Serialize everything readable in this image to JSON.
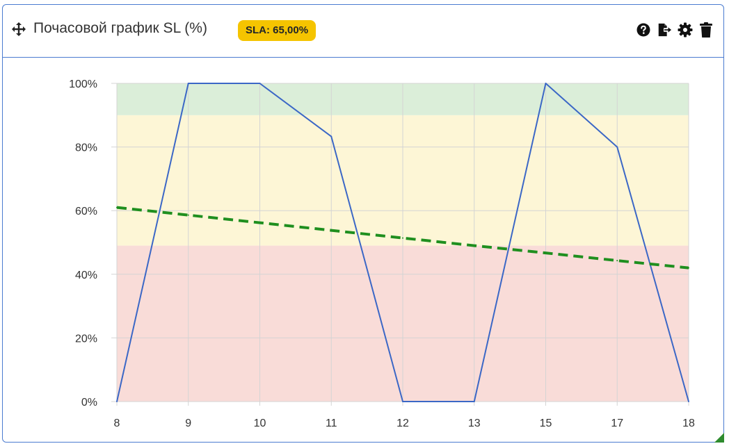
{
  "widget": {
    "title": "Почасовой график SL (%)",
    "badge": "SLA: 65,00%",
    "badge_color": "#f5c400",
    "icons": [
      "move-icon",
      "help-icon",
      "export-icon",
      "settings-icon",
      "trash-icon"
    ]
  },
  "chart_data": {
    "type": "line",
    "categories": [
      "8",
      "9",
      "10",
      "11",
      "12",
      "13",
      "15",
      "17",
      "18"
    ],
    "series": [
      {
        "values": [
          0,
          100,
          100,
          83.3,
          0,
          0,
          100,
          80,
          0
        ],
        "color": "#3b67c6",
        "style": "solid"
      },
      {
        "values": [
          61,
          58.6,
          56.2,
          53.8,
          51.4,
          49,
          46.7,
          44.3,
          42
        ],
        "color": "#1f8f1f",
        "style": "dashed"
      }
    ],
    "ylim": [
      0,
      100
    ],
    "yticks": [
      0,
      20,
      40,
      60,
      80,
      100
    ],
    "ytick_suffix": "%",
    "bands": [
      {
        "from": 0,
        "to": 49,
        "color": "#f9dcd8"
      },
      {
        "from": 49,
        "to": 90,
        "color": "#fdf6d6"
      },
      {
        "from": 90,
        "to": 100,
        "color": "#dbeed9"
      }
    ],
    "grid": true,
    "legend": "none"
  }
}
